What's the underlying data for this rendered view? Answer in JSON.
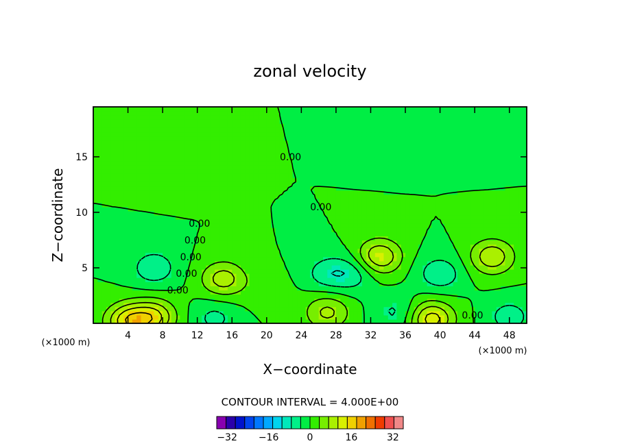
{
  "chart_data": {
    "type": "heatmap",
    "title": "zonal velocity",
    "xlabel": "X−coordinate",
    "ylabel": "Z−coordinate",
    "x_unit_left": "(×1000 m)",
    "x_unit_right": "(×1000 m)",
    "xlim": [
      0,
      50
    ],
    "ylim": [
      0,
      19.5
    ],
    "x_ticks": [
      4,
      8,
      12,
      16,
      20,
      24,
      28,
      32,
      36,
      40,
      44,
      48
    ],
    "x_tick_labels": [
      "4",
      "8",
      "12",
      "16",
      "20",
      "24",
      "28",
      "32",
      "36",
      "40",
      "44",
      "48"
    ],
    "y_ticks": [
      5,
      10,
      15
    ],
    "y_tick_labels": [
      "5",
      "10",
      "15"
    ],
    "contour_interval_text": "CONTOUR INTERVAL = 4.000E+00",
    "contour_interval": 4.0,
    "contour_labels": [
      "0.00",
      "0.00",
      "0.00",
      "0.00",
      "0.00",
      "0.00",
      "0.00",
      "0.00"
    ],
    "colorbar": {
      "range": [
        -36,
        36
      ],
      "colors": [
        "#8800b0",
        "#2a00aa",
        "#0012cc",
        "#0044ee",
        "#0077ff",
        "#00a8ff",
        "#00d4ee",
        "#00e8bb",
        "#00f088",
        "#00ee44",
        "#33ee00",
        "#77ee00",
        "#aaf000",
        "#d8f000",
        "#f0d000",
        "#f0a000",
        "#f07000",
        "#f03c00",
        "#f05050",
        "#f08888"
      ],
      "tick_values": [
        -32,
        -16,
        0,
        16,
        32
      ],
      "tick_labels": [
        "−32",
        "−16",
        "0",
        "16",
        "32"
      ]
    },
    "features": [
      {
        "x": 4,
        "y": 0.2,
        "value": 14
      },
      {
        "x": 7,
        "y": 0.6,
        "value": 12
      },
      {
        "x": 7,
        "y": 5.0,
        "value": -7
      },
      {
        "x": 15,
        "y": 4.0,
        "value": 10
      },
      {
        "x": 14,
        "y": 0.5,
        "value": -5
      },
      {
        "x": 20,
        "y": 3.0,
        "value": 2
      },
      {
        "x": 27,
        "y": 1.0,
        "value": 9
      },
      {
        "x": 27,
        "y": 4.5,
        "value": -6
      },
      {
        "x": 30,
        "y": 4.5,
        "value": -6
      },
      {
        "x": 33,
        "y": 6.0,
        "value": 12
      },
      {
        "x": 35,
        "y": 1.0,
        "value": -5
      },
      {
        "x": 39,
        "y": 0.4,
        "value": 14
      },
      {
        "x": 40,
        "y": 4.5,
        "value": -7
      },
      {
        "x": 46,
        "y": 6.0,
        "value": 11
      },
      {
        "x": 48,
        "y": 0.6,
        "value": -6
      },
      {
        "x": 10,
        "y": 14.0,
        "value": 1.5
      },
      {
        "x": 35,
        "y": 17.0,
        "value": -1.0
      },
      {
        "x": 44,
        "y": 17.5,
        "value": -1.0
      }
    ]
  }
}
